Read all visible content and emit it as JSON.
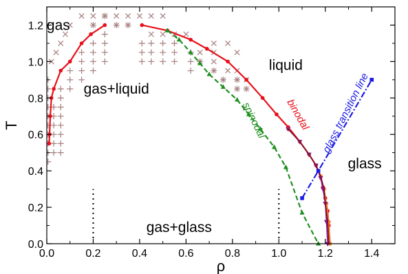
{
  "chart_data": {
    "type": "line",
    "title": "",
    "xlabel": "ρ",
    "ylabel": "T",
    "xlim": [
      0,
      1.5
    ],
    "ylim": [
      0,
      1.3
    ],
    "xticks": [
      0.0,
      0.2,
      0.4,
      0.6,
      0.8,
      1.0,
      1.2,
      1.4
    ],
    "xtick_labels": [
      "0.0",
      "0.2",
      "0.4",
      "0.6",
      "0.8",
      "1.0",
      "1.2",
      "1.4"
    ],
    "yticks": [
      0.0,
      0.2,
      0.4,
      0.6,
      0.8,
      1.0,
      1.2
    ],
    "ytick_labels": [
      "0.0",
      "0.2",
      "0.4",
      "0.6",
      "0.8",
      "1.0",
      "1.2"
    ],
    "grid": false,
    "region_labels": [
      {
        "text": "gas",
        "x": 0.05,
        "y": 1.2
      },
      {
        "text": "gas+liquid",
        "x": 0.3,
        "y": 0.85
      },
      {
        "text": "liquid",
        "x": 1.03,
        "y": 0.98
      },
      {
        "text": "glass",
        "x": 1.37,
        "y": 0.44
      },
      {
        "text": "gas+glass",
        "x": 0.57,
        "y": 0.09
      }
    ],
    "curve_labels": [
      {
        "text": "binodal",
        "color": "#e8101a",
        "x": 1.07,
        "y": 0.7,
        "angle": 60
      },
      {
        "text": "spinodal",
        "color": "#1f8f1f",
        "x": 0.88,
        "y": 0.67,
        "angle": 64
      },
      {
        "text": "glass transition line",
        "color": "#1a1ae6",
        "x": 1.3,
        "y": 0.71,
        "angle": -63
      }
    ],
    "series": [
      {
        "role": "binodal-gas-branch",
        "color": "#e8101a",
        "marker": "circle",
        "x": [
          0.01,
          0.012,
          0.015,
          0.02,
          0.03,
          0.06,
          0.1,
          0.15,
          0.19,
          0.25
        ],
        "y": [
          0.55,
          0.6,
          0.7,
          0.8,
          0.85,
          0.95,
          1.0,
          1.1,
          1.15,
          1.2
        ]
      },
      {
        "role": "binodal-liquid-branch",
        "color": "#e8101a",
        "marker": "circle",
        "x": [
          0.41,
          0.52,
          0.62,
          0.69,
          0.78,
          0.86,
          0.93,
          0.99,
          1.04,
          1.09,
          1.13,
          1.16,
          1.18,
          1.19,
          1.2,
          1.21,
          1.215,
          1.22
        ],
        "y": [
          1.2,
          1.17,
          1.12,
          1.07,
          1.0,
          0.9,
          0.8,
          0.71,
          0.64,
          0.56,
          0.49,
          0.43,
          0.37,
          0.31,
          0.25,
          0.18,
          0.1,
          0.0
        ]
      },
      {
        "role": "binodal-variant-orange",
        "color": "#f08020",
        "marker": "circle",
        "x": [
          1.04,
          1.09,
          1.13,
          1.16,
          1.18,
          1.195,
          1.205,
          1.215,
          1.22
        ],
        "y": [
          0.63,
          0.56,
          0.49,
          0.43,
          0.37,
          0.3,
          0.22,
          0.12,
          0.0
        ]
      },
      {
        "role": "binodal-variant-purple",
        "color": "#8a1a8a",
        "marker": "triangle-down",
        "x": [
          1.04,
          1.09,
          1.13,
          1.16,
          1.18,
          1.19,
          1.2,
          1.205,
          1.21
        ],
        "y": [
          0.63,
          0.56,
          0.49,
          0.43,
          0.36,
          0.3,
          0.22,
          0.12,
          0.0
        ]
      },
      {
        "role": "binodal-variant-maroon",
        "color": "#800a28",
        "marker": "none",
        "x": [
          1.04,
          1.09,
          1.13,
          1.16,
          1.18,
          1.195,
          1.2,
          1.21,
          1.215
        ],
        "y": [
          0.63,
          0.56,
          0.49,
          0.43,
          0.37,
          0.3,
          0.22,
          0.12,
          0.0
        ]
      },
      {
        "role": "spinodal",
        "color": "#1f8f1f",
        "marker": "triangle",
        "dashed": true,
        "x": [
          0.52,
          0.57,
          0.62,
          0.66,
          0.7,
          0.76,
          0.82,
          0.87,
          0.92,
          0.98,
          1.03,
          1.1,
          1.17
        ],
        "y": [
          1.17,
          1.12,
          1.05,
          0.99,
          0.93,
          0.86,
          0.79,
          0.71,
          0.63,
          0.53,
          0.42,
          0.17,
          0.0
        ]
      },
      {
        "role": "glass-transition-line",
        "color": "#1a1ae6",
        "marker": "square",
        "dashdot": true,
        "x": [
          1.1,
          1.17,
          1.4
        ],
        "y": [
          0.25,
          0.4,
          0.9
        ]
      }
    ],
    "scatter_points": {
      "color": "#a98484",
      "plus": [
        [
          0.005,
          0.45
        ],
        [
          0.005,
          0.5
        ],
        [
          0.005,
          0.55
        ],
        [
          0.005,
          0.6
        ],
        [
          0.005,
          0.65
        ],
        [
          0.005,
          0.7
        ],
        [
          0.005,
          0.75
        ],
        [
          0.005,
          0.8
        ],
        [
          0.005,
          0.85
        ],
        [
          0.005,
          0.9
        ],
        [
          0.03,
          0.5
        ],
        [
          0.03,
          0.55
        ],
        [
          0.03,
          0.6
        ],
        [
          0.03,
          0.65
        ],
        [
          0.03,
          0.7
        ],
        [
          0.03,
          0.75
        ],
        [
          0.06,
          0.5
        ],
        [
          0.06,
          0.55
        ],
        [
          0.06,
          0.6
        ],
        [
          0.06,
          0.65
        ],
        [
          0.06,
          0.7
        ],
        [
          0.06,
          0.75
        ],
        [
          0.06,
          0.8
        ],
        [
          0.06,
          0.85
        ],
        [
          0.1,
          0.85
        ],
        [
          0.1,
          0.9
        ],
        [
          0.1,
          0.95
        ],
        [
          0.15,
          0.9
        ],
        [
          0.15,
          0.95
        ],
        [
          0.15,
          1.0
        ],
        [
          0.15,
          1.05
        ],
        [
          0.2,
          0.95
        ],
        [
          0.2,
          1.0
        ],
        [
          0.2,
          1.05
        ],
        [
          0.2,
          1.1
        ],
        [
          0.25,
          1.0
        ],
        [
          0.25,
          1.05
        ],
        [
          0.25,
          1.1
        ],
        [
          0.25,
          1.15
        ],
        [
          0.41,
          1.0
        ],
        [
          0.41,
          1.05
        ],
        [
          0.41,
          1.1
        ],
        [
          0.45,
          1.0
        ],
        [
          0.45,
          1.05
        ],
        [
          0.45,
          1.1
        ],
        [
          0.5,
          1.0
        ],
        [
          0.5,
          1.05
        ],
        [
          0.5,
          1.1
        ],
        [
          0.55,
          1.0
        ],
        [
          0.55,
          1.05
        ],
        [
          0.55,
          1.1
        ],
        [
          0.62,
          0.95
        ],
        [
          0.62,
          1.0
        ],
        [
          0.62,
          1.05
        ]
      ],
      "cross": [
        [
          0.02,
          1.0
        ],
        [
          0.04,
          1.05
        ],
        [
          0.06,
          1.1
        ],
        [
          0.08,
          1.15
        ],
        [
          0.1,
          1.2
        ],
        [
          0.15,
          1.25
        ],
        [
          0.2,
          1.25
        ],
        [
          0.25,
          1.25
        ],
        [
          0.3,
          1.25
        ],
        [
          0.35,
          1.25
        ],
        [
          0.4,
          1.25
        ],
        [
          0.45,
          1.25
        ],
        [
          0.5,
          1.25
        ],
        [
          0.45,
          1.15
        ],
        [
          0.5,
          1.15
        ],
        [
          0.55,
          1.15
        ],
        [
          0.6,
          1.15
        ],
        [
          0.66,
          1.05
        ],
        [
          0.72,
          1.05
        ],
        [
          0.72,
          1.0
        ],
        [
          0.78,
          0.95
        ],
        [
          0.82,
          0.95
        ],
        [
          0.82,
          1.05
        ],
        [
          0.86,
          0.9
        ],
        [
          0.78,
          1.1
        ],
        [
          0.72,
          1.1
        ]
      ],
      "star": [
        [
          0.2,
          1.2
        ],
        [
          0.3,
          1.2
        ],
        [
          0.25,
          1.25
        ],
        [
          0.35,
          1.2
        ],
        [
          0.66,
          1.0
        ],
        [
          0.72,
          0.95
        ],
        [
          0.76,
          0.9
        ],
        [
          0.82,
          0.9
        ],
        [
          0.82,
          0.85
        ],
        [
          0.86,
          0.85
        ]
      ]
    },
    "vertical_markers": [
      {
        "x": 0.2,
        "y0": 0.03,
        "y1": 0.3
      },
      {
        "x": 1.0,
        "y0": 0.03,
        "y1": 0.3
      }
    ]
  }
}
